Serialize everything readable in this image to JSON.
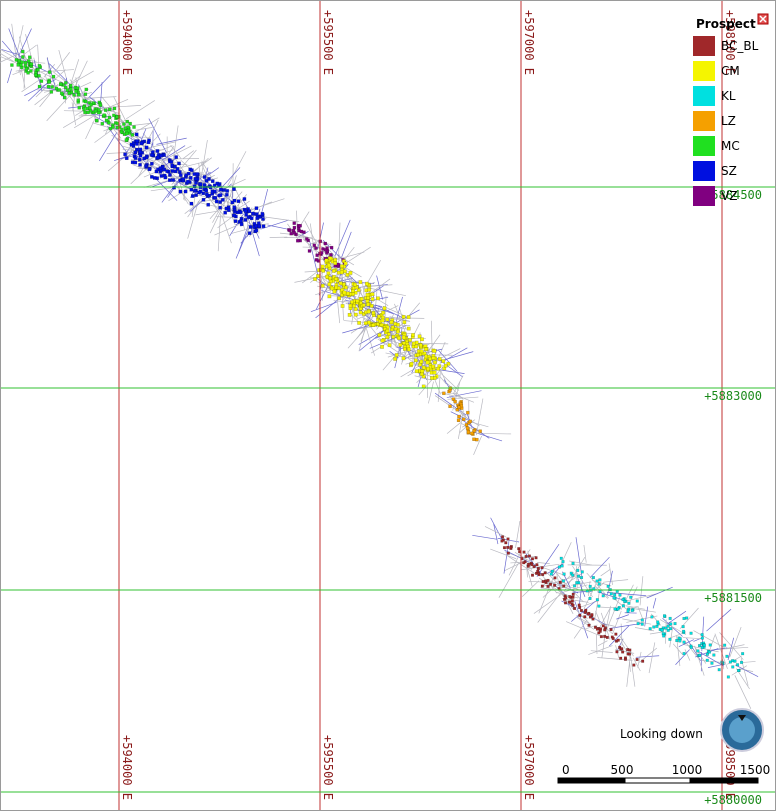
{
  "map": {
    "eastings": [
      "+594000 E",
      "+595500 E",
      "+597000 E",
      "+598500 E"
    ],
    "northings": [
      "+5884500",
      "+5883000",
      "+5881500",
      "+5880000"
    ],
    "legend": {
      "title": "Prospect",
      "items": [
        {
          "label": "BC_BL",
          "color": "#a0282a"
        },
        {
          "label": "CM",
          "color": "#f5f500"
        },
        {
          "label": "KL",
          "color": "#00e0e0"
        },
        {
          "label": "LZ",
          "color": "#f5a000"
        },
        {
          "label": "MC",
          "color": "#20e020"
        },
        {
          "label": "SZ",
          "color": "#0010e0"
        },
        {
          "label": "VZ",
          "color": "#800080"
        }
      ]
    },
    "view_label": "Looking down",
    "scale_bar": {
      "ticks": [
        0,
        500,
        1000,
        1500
      ]
    }
  }
}
